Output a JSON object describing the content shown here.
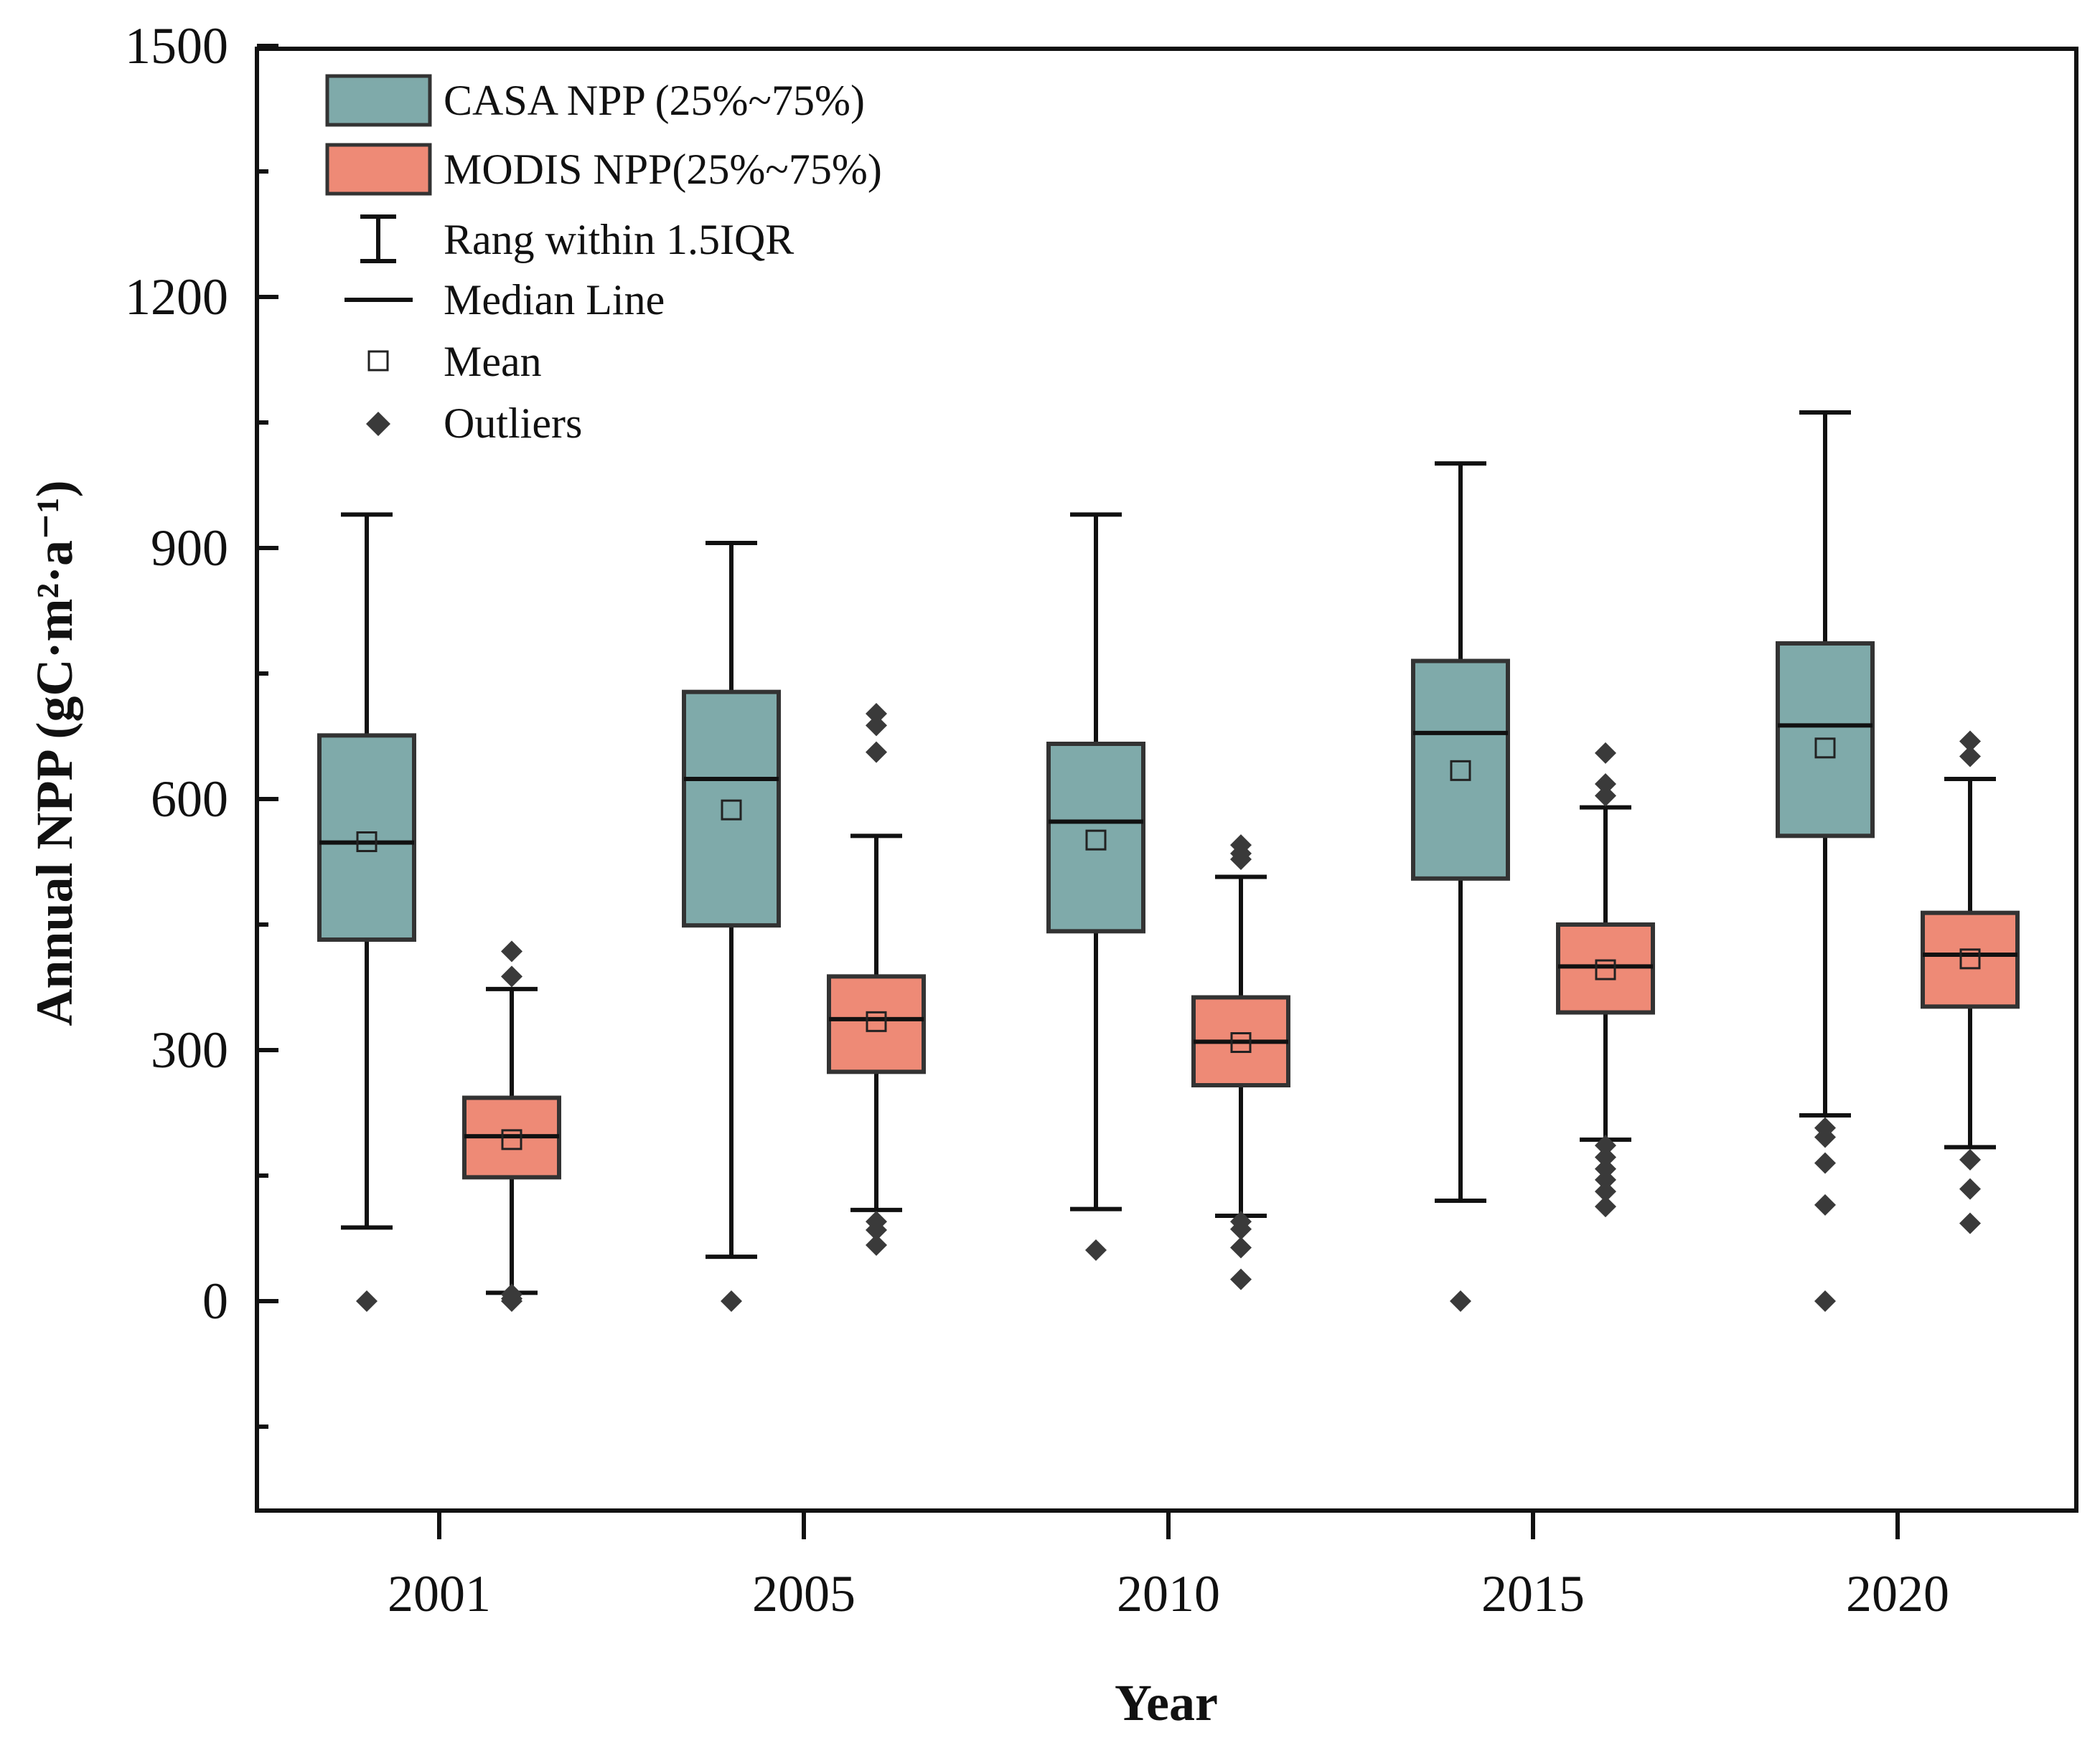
{
  "chart_data": {
    "type": "box",
    "xlabel": "Year",
    "ylabel": "Annual NPP",
    "ylabel_unit": "(gC·m²·a⁻¹)",
    "ylim": [
      -300,
      1500
    ],
    "yticks": [
      0,
      300,
      600,
      900,
      1200,
      1500
    ],
    "categories": [
      "2001",
      "2005",
      "2010",
      "2015",
      "2020"
    ],
    "colors": {
      "casa_fill": "#7faaaa",
      "modis_fill": "#ee8a76",
      "stroke": "#333333",
      "outlier": "#3a3a3a"
    },
    "legend": {
      "casa": "CASA NPP (25%~75%)",
      "modis": "MODIS NPP(25%~75%)",
      "range": "Rang within 1.5IQR",
      "median": "Median Line",
      "mean": "Mean",
      "outliers": "Outliers"
    },
    "series": [
      {
        "name": "CASA NPP",
        "boxes": [
          {
            "category": "2001",
            "whisker_low": 88,
            "q1": 432,
            "median": 548,
            "q3": 676,
            "whisker_high": 940,
            "mean": 549,
            "outliers": [
              0
            ]
          },
          {
            "category": "2005",
            "whisker_low": 53,
            "q1": 449,
            "median": 624,
            "q3": 728,
            "whisker_high": 906,
            "mean": 587,
            "outliers": [
              0
            ]
          },
          {
            "category": "2010",
            "whisker_low": 110,
            "q1": 442,
            "median": 573,
            "q3": 666,
            "whisker_high": 940,
            "mean": 551,
            "outliers": [
              61
            ]
          },
          {
            "category": "2015",
            "whisker_low": 120,
            "q1": 505,
            "median": 679,
            "q3": 765,
            "whisker_high": 1001,
            "mean": 634,
            "outliers": [
              0
            ]
          },
          {
            "category": "2020",
            "whisker_low": 222,
            "q1": 556,
            "median": 688,
            "q3": 786,
            "whisker_high": 1062,
            "mean": 661,
            "outliers": [
              207,
              196,
              165,
              115,
              0
            ]
          }
        ]
      },
      {
        "name": "MODIS NPP",
        "boxes": [
          {
            "category": "2001",
            "whisker_low": 10,
            "q1": 148,
            "median": 197,
            "q3": 243,
            "whisker_high": 373,
            "mean": 193,
            "outliers": [
              418,
              388,
              8,
              3,
              0
            ]
          },
          {
            "category": "2005",
            "whisker_low": 109,
            "q1": 274,
            "median": 337,
            "q3": 388,
            "whisker_high": 556,
            "mean": 334,
            "outliers": [
              702,
              688,
              656,
              95,
              85,
              67
            ]
          },
          {
            "category": "2010",
            "whisker_low": 102,
            "q1": 258,
            "median": 310,
            "q3": 363,
            "whisker_high": 507,
            "mean": 309,
            "outliers": [
              545,
              535,
              528,
              95,
              86,
              64,
              26
            ]
          },
          {
            "category": "2015",
            "whisker_low": 193,
            "q1": 345,
            "median": 400,
            "q3": 450,
            "whisker_high": 590,
            "mean": 396,
            "outliers": [
              655,
              618,
              604,
              186,
              172,
              158,
              145,
              131,
              113
            ]
          },
          {
            "category": "2020",
            "whisker_low": 184,
            "q1": 352,
            "median": 414,
            "q3": 464,
            "whisker_high": 624,
            "mean": 409,
            "outliers": [
              669,
              651,
              169,
              134,
              93
            ]
          }
        ]
      }
    ]
  }
}
